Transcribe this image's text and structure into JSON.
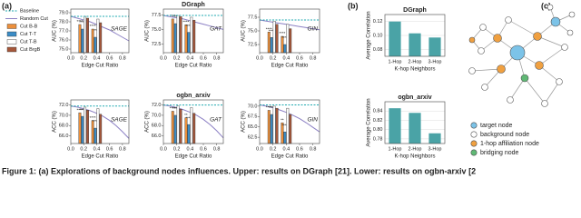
{
  "panel_labels": [
    "(a)",
    "(b)",
    "(c)"
  ],
  "chart_data": [
    {
      "type": "mixed",
      "model": "SAGE",
      "xlabel": "Edge Cut Ratio",
      "ylabel": "AUC (%)",
      "xlim": [
        0,
        0.9
      ],
      "xticks": [
        {
          "value": 0,
          "label": "0.0"
        },
        0.2,
        0.4,
        0.6,
        0.8
      ],
      "ylim": [
        74.6,
        79.4
      ],
      "yticks": [
        {
          "value": 75,
          "label": "75.0"
        },
        {
          "value": 76,
          "label": "76.0"
        },
        {
          "value": 77,
          "label": "77.0"
        },
        {
          "value": 78,
          "label": "78.0"
        },
        {
          "value": 79,
          "label": "79.0"
        }
      ],
      "baseline": {
        "name": "Baseline",
        "value": 78.6,
        "color": "#1fa9b0"
      },
      "random_cut": {
        "name": "Random Cut",
        "color": "#8c80c4",
        "x": [
          0,
          0.1,
          0.2,
          0.3,
          0.4,
          0.5,
          0.6,
          0.7,
          0.8,
          0.9
        ],
        "values": [
          78.6,
          78.4,
          78.2,
          78.0,
          77.7,
          77.4,
          77.1,
          76.7,
          76.3,
          75.9
        ]
      },
      "x": [
        0.2,
        0.4
      ],
      "series": [
        {
          "name": "Cut B-B",
          "color": "#ec8f3b",
          "values": [
            77.7,
            77.2
          ],
          "sig": [
            "****",
            "****"
          ]
        },
        {
          "name": "Cut T-T",
          "color": "#3b8cc6",
          "values": [
            77.2,
            76.3
          ],
          "sig": [
            "****",
            "**"
          ]
        },
        {
          "name": "Cut T-B",
          "color": "#ffffff",
          "values": [
            78.6,
            78.3
          ]
        },
        {
          "name": "Cut BrgB",
          "color": "#a6573a",
          "values": [
            78.4,
            77.9
          ]
        }
      ]
    },
    {
      "type": "mixed",
      "title": "DGraph",
      "model": "GAT",
      "xlabel": "Edge Cut Ratio",
      "ylabel": "AUC (%)",
      "xlim": [
        0,
        0.9
      ],
      "xticks": [
        {
          "value": 0,
          "label": "0.0"
        },
        0.2,
        0.4,
        0.6,
        0.8
      ],
      "ylim": [
        71,
        78.5
      ],
      "yticks": [
        72.5,
        {
          "value": 75,
          "label": "75.0"
        },
        77.5
      ],
      "baseline": {
        "value": 77.4,
        "color": "#1fa9b0"
      },
      "random_cut": {
        "color": "#8c80c4",
        "x": [
          0,
          0.1,
          0.2,
          0.3,
          0.4,
          0.5,
          0.6,
          0.7,
          0.8,
          0.9
        ],
        "values": [
          77.4,
          77.2,
          77.0,
          76.8,
          76.5,
          76.2,
          75.9,
          75.6,
          75.3,
          75.0
        ]
      },
      "x": [
        0.2,
        0.4
      ],
      "series": [
        {
          "color": "#ec8f3b",
          "values": [
            76.8,
            75.8
          ],
          "sig": [
            "****",
            "****"
          ]
        },
        {
          "color": "#3b8cc6",
          "values": [
            76.0,
            74.5
          ],
          "sig": [
            "****",
            "****"
          ]
        },
        {
          "color": "#ffffff",
          "values": [
            77.4,
            77.1
          ]
        },
        {
          "color": "#a6573a",
          "values": [
            77.2,
            76.6
          ]
        }
      ]
    },
    {
      "type": "mixed",
      "model": "GIN",
      "xlabel": "Edge Cut Ratio",
      "ylabel": "AUC (%)",
      "xlim": [
        0,
        0.9
      ],
      "xticks": [
        {
          "value": 0,
          "label": "0.0"
        },
        0.2,
        0.4,
        0.6,
        0.8
      ],
      "ylim": [
        71,
        79
      ],
      "yticks": [
        72.5,
        {
          "value": 75,
          "label": "75.0"
        },
        77.5
      ],
      "baseline": {
        "value": 77.0,
        "color": "#1fa9b0"
      },
      "random_cut": {
        "color": "#8c80c4",
        "x": [
          0,
          0.1,
          0.2,
          0.3,
          0.4,
          0.5,
          0.6,
          0.7,
          0.8,
          0.9
        ],
        "values": [
          77.0,
          76.8,
          76.6,
          76.4,
          76.2,
          76.0,
          75.8,
          75.6,
          75.4,
          75.2
        ]
      },
      "x": [
        0.2,
        0.4
      ],
      "series": [
        {
          "color": "#ec8f3b",
          "values": [
            74.8,
            74.0
          ],
          "sig": [
            "****",
            "****"
          ]
        },
        {
          "color": "#3b8cc6",
          "values": [
            73.8,
            72.5
          ],
          "sig": [
            "****",
            "****"
          ]
        },
        {
          "color": "#ffffff",
          "values": [
            76.8,
            76.2
          ]
        },
        {
          "color": "#a6573a",
          "values": [
            76.2,
            75.4
          ]
        }
      ]
    },
    {
      "type": "mixed",
      "model": "SAGE",
      "xlabel": "Edge Cut Ratio",
      "ylabel": "ACC (%)",
      "xlim": [
        0,
        0.9
      ],
      "xticks": [
        {
          "value": 0,
          "label": "0.0"
        },
        0.2,
        0.4,
        0.6,
        0.8
      ],
      "ylim": [
        64.5,
        73
      ],
      "yticks": [
        {
          "value": 66,
          "label": "66.0"
        },
        {
          "value": 68,
          "label": "68.0"
        },
        {
          "value": 70,
          "label": "70.0"
        },
        {
          "value": 72,
          "label": "72.0"
        }
      ],
      "baseline": {
        "value": 71.8,
        "color": "#1fa9b0"
      },
      "random_cut": {
        "color": "#8c80c4",
        "x": [
          0,
          0.1,
          0.2,
          0.3,
          0.4,
          0.5,
          0.6,
          0.7,
          0.8,
          0.9
        ],
        "values": [
          71.8,
          71.6,
          71.3,
          70.9,
          70.4,
          69.8,
          69.0,
          68.0,
          66.8,
          65.5
        ]
      },
      "x": [
        0.2,
        0.4
      ],
      "series": [
        {
          "color": "#ec8f3b",
          "values": [
            70.5,
            69.0
          ],
          "sig": [
            "****",
            "****"
          ]
        },
        {
          "color": "#3b8cc6",
          "values": [
            69.8,
            67.5
          ],
          "sig": [
            "****",
            "****"
          ]
        },
        {
          "color": "#ffffff",
          "values": [
            71.6,
            71.3
          ]
        },
        {
          "color": "#a6573a",
          "values": [
            71.0,
            70.2
          ]
        }
      ]
    },
    {
      "type": "mixed",
      "title": "ogbn_arxiv",
      "model": "GAT",
      "xlabel": "Edge Cut Ratio",
      "ylabel": "ACC (%)",
      "xlim": [
        0,
        0.9
      ],
      "xticks": [
        {
          "value": 0,
          "label": "0.0"
        },
        0.2,
        0.4,
        0.6,
        0.8
      ],
      "ylim": [
        64.5,
        73
      ],
      "yticks": [
        {
          "value": 66,
          "label": "66.0"
        },
        {
          "value": 68,
          "label": "68.0"
        },
        {
          "value": 70,
          "label": "70.0"
        },
        {
          "value": 72,
          "label": "72.0"
        }
      ],
      "baseline": {
        "value": 72.0,
        "color": "#1fa9b0"
      },
      "random_cut": {
        "color": "#8c80c4",
        "x": [
          0,
          0.1,
          0.2,
          0.3,
          0.4,
          0.5,
          0.6,
          0.7,
          0.8,
          0.9
        ],
        "values": [
          72.0,
          71.8,
          71.5,
          71.1,
          70.6,
          70.0,
          69.2,
          68.2,
          67.0,
          65.6
        ]
      },
      "x": [
        0.2,
        0.4
      ],
      "series": [
        {
          "color": "#ec8f3b",
          "values": [
            70.8,
            69.5
          ],
          "sig": [
            "****",
            "**"
          ]
        },
        {
          "color": "#3b8cc6",
          "values": [
            70.0,
            68.2
          ],
          "sig": [
            "****",
            "****"
          ]
        },
        {
          "color": "#ffffff",
          "values": [
            71.8,
            71.5
          ]
        },
        {
          "color": "#a6573a",
          "values": [
            71.2,
            70.4
          ]
        }
      ]
    },
    {
      "type": "mixed",
      "model": "GIN",
      "xlabel": "Edge Cut Ratio",
      "ylabel": "ACC (%)",
      "xlim": [
        0,
        0.9
      ],
      "xticks": [
        {
          "value": 0,
          "label": "0.0"
        },
        0.2,
        0.4,
        0.6,
        0.8
      ],
      "ylim": [
        61,
        71.5
      ],
      "yticks": [
        62.5,
        {
          "value": 65,
          "label": "65.0"
        },
        67.5,
        {
          "value": 70,
          "label": "70.0"
        }
      ],
      "baseline": {
        "value": 70.3,
        "color": "#1fa9b0"
      },
      "random_cut": {
        "color": "#8c80c4",
        "x": [
          0,
          0.1,
          0.2,
          0.3,
          0.4,
          0.5,
          0.6,
          0.7,
          0.8,
          0.9
        ],
        "values": [
          70.3,
          70.0,
          69.6,
          69.1,
          68.5,
          67.8,
          67.0,
          66.0,
          64.9,
          63.8
        ]
      },
      "x": [
        0.2,
        0.4
      ],
      "series": [
        {
          "color": "#ec8f3b",
          "values": [
            69.0,
            66.0
          ],
          "sig": [
            "****",
            "**"
          ]
        },
        {
          "color": "#3b8cc6",
          "values": [
            68.0,
            63.8
          ],
          "sig": [
            "****",
            "****"
          ]
        },
        {
          "color": "#ffffff",
          "values": [
            70.0,
            69.5
          ]
        },
        {
          "color": "#a6573a",
          "values": [
            69.5,
            68.0
          ]
        }
      ]
    },
    {
      "type": "bar",
      "title": "DGraph",
      "ylabel": "Average Correlation",
      "xlabel": "K-hop Neighbors",
      "categories": [
        "1-Hop",
        "2-Hop",
        "3-Hop"
      ],
      "values": [
        0.12,
        0.103,
        0.097
      ],
      "color": "#4aa3a6",
      "ylim": [
        0.07,
        0.13
      ],
      "yticks": [
        0.08,
        {
          "value": 0.1,
          "label": "0.10"
        },
        0.12
      ],
      "grid": true
    },
    {
      "type": "bar",
      "title": "ogbn_arxiv",
      "ylabel": "Average Correlation",
      "xlabel": "K-hop Neighbors",
      "categories": [
        "1-Hop",
        "2-Hop",
        "3-Hop"
      ],
      "values": [
        0.846,
        0.836,
        0.792
      ],
      "color": "#4aa3a6",
      "ylim": [
        0.77,
        0.86
      ],
      "yticks": [
        0.78,
        {
          "value": 0.8,
          "label": "0.80"
        },
        0.82,
        0.84
      ],
      "grid": true
    }
  ],
  "diagram": {
    "legend": [
      {
        "label": "target node",
        "color": "#7cc3e8"
      },
      {
        "label": "background node",
        "color": "#ffffff"
      },
      {
        "label": "1-hop affiliation node",
        "color": "#f0a040"
      },
      {
        "label": "bridging node",
        "color": "#5fb874"
      }
    ]
  },
  "caption": "Figure 1: (a) Explorations of background nodes influences. Upper: results on DGraph [21]. Lower: results on ogbn-arxiv [2"
}
